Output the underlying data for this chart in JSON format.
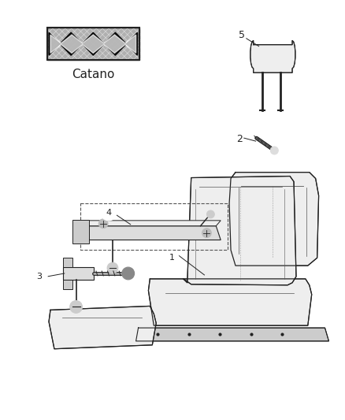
{
  "bg_color": "#ffffff",
  "fabric_label": "Catano",
  "dark": "#222222",
  "gray": "#555555",
  "light_fill": "#eeeeee",
  "mid_fill": "#dddddd",
  "rail_fill": "#cccccc"
}
